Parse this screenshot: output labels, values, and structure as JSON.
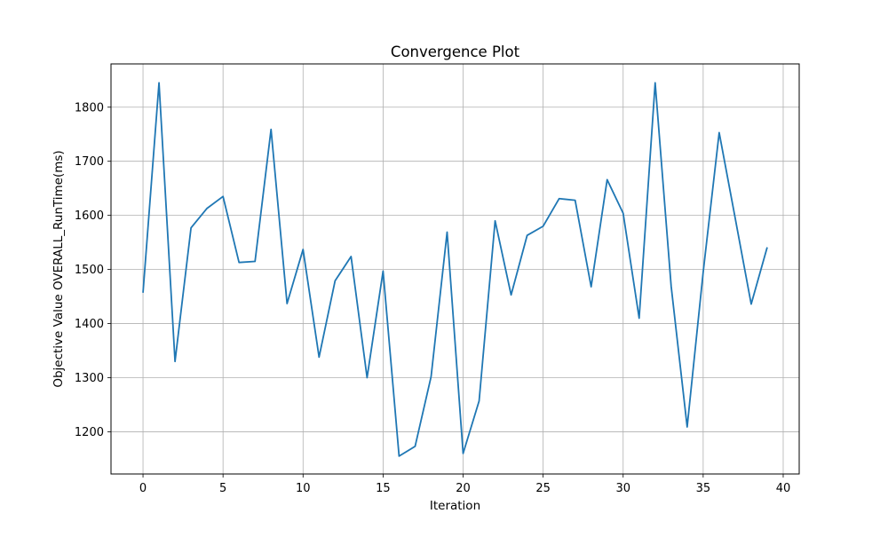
{
  "chart_data": {
    "type": "line",
    "title": "Convergence Plot",
    "xlabel": "Iteration",
    "ylabel": "Objective Value OVERALL_RunTime(ms)",
    "xlim": [
      -2,
      41
    ],
    "ylim": [
      1122,
      1880
    ],
    "xticks": [
      0,
      5,
      10,
      15,
      20,
      25,
      30,
      35,
      40
    ],
    "yticks": [
      1200,
      1300,
      1400,
      1500,
      1600,
      1700,
      1800
    ],
    "grid": true,
    "line_color": "#1f77b4",
    "series": [
      {
        "x": [
          0,
          1,
          2,
          3,
          4,
          5,
          6,
          7,
          8,
          9,
          10,
          11,
          12,
          13,
          14,
          15,
          16,
          17,
          18,
          19,
          20,
          21,
          22,
          23,
          24,
          25,
          26,
          27,
          28,
          29,
          30,
          31,
          32,
          33,
          34,
          35,
          36,
          37,
          38,
          39
        ],
        "values": [
          1457,
          1845,
          1330,
          1577,
          1613,
          1635,
          1513,
          1515,
          1759,
          1437,
          1537,
          1338,
          1479,
          1524,
          1300,
          1497,
          1155,
          1173,
          1302,
          1569,
          1160,
          1257,
          1590,
          1453,
          1563,
          1580,
          1631,
          1628,
          1468,
          1666,
          1604,
          1410,
          1845,
          1469,
          1209,
          1495,
          1753,
          1595,
          1436,
          1541
        ]
      }
    ]
  }
}
